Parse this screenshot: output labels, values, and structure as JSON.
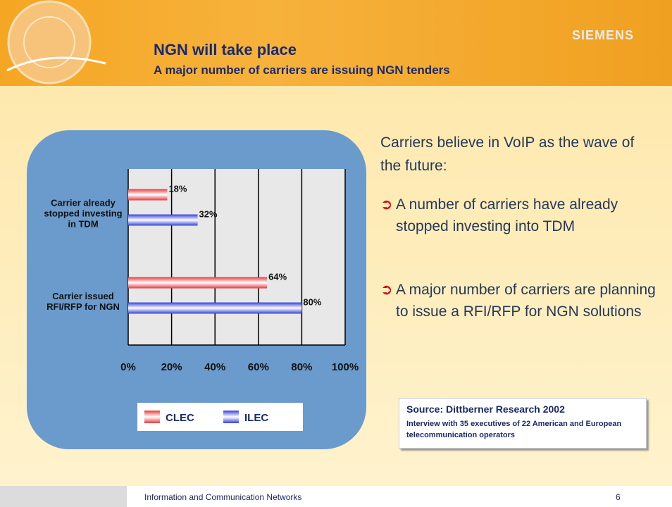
{
  "header": {
    "title": "NGN will take place",
    "subtitle": "A major number of carriers are issuing NGN tenders",
    "brand": "SIEMENS"
  },
  "chart_data": {
    "type": "hbar",
    "categories": [
      "Carrier already stopped investing in TDM",
      "Carrier issued RFI/RFP for NGN"
    ],
    "series": [
      {
        "name": "CLEC",
        "color": "#e8383d",
        "values": [
          18,
          64
        ],
        "value_labels": [
          "18%",
          "64%"
        ]
      },
      {
        "name": "ILEC",
        "color": "#3340d8",
        "values": [
          32,
          80
        ],
        "value_labels": [
          "32%",
          "80%"
        ]
      }
    ],
    "xlim": [
      0,
      100
    ],
    "xticks": [
      {
        "value": 0,
        "label": "0%"
      },
      {
        "value": 20,
        "label": "20%"
      },
      {
        "value": 40,
        "label": "40%"
      },
      {
        "value": 60,
        "label": "60%"
      },
      {
        "value": 80,
        "label": "80%"
      },
      {
        "value": 100,
        "label": "100%"
      }
    ],
    "grid": true
  },
  "text": {
    "intro": "Carriers believe in VoIP as the wave of the future:",
    "bullets": [
      "A number of carriers have already stopped investing into TDM",
      "A major number of carriers are planning to issue a RFI/RFP for NGN solutions"
    ]
  },
  "source": {
    "title": "Source: Dittberner Research 2002",
    "note": "Interview with 35 executives of  22 American and European telecommunication operators"
  },
  "footer": {
    "text": "Information and Communication Networks",
    "page": "6"
  }
}
